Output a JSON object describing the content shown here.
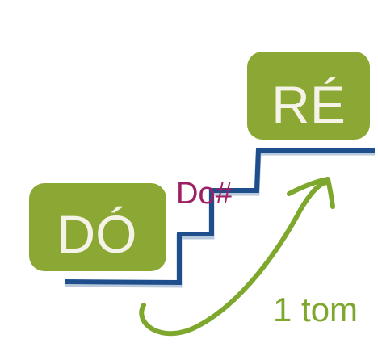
{
  "notes": {
    "low": {
      "label": "DÓ"
    },
    "half_step": {
      "label": "Do#"
    },
    "high": {
      "label": "RÉ"
    }
  },
  "interval": {
    "label": "1 tom"
  },
  "colors": {
    "note_box": "#8aa833",
    "note_box_border": "#ffffff",
    "note_text": "#f5f3e8",
    "half_step_text": "#9e1f63",
    "stairs": "#1f4e8c",
    "arrow": "#7ea82d",
    "interval_text": "#7ea82d",
    "background": "#ffffff"
  },
  "icons": {
    "stairs": "staircase-icon",
    "arrow": "curved-arrow-icon"
  }
}
